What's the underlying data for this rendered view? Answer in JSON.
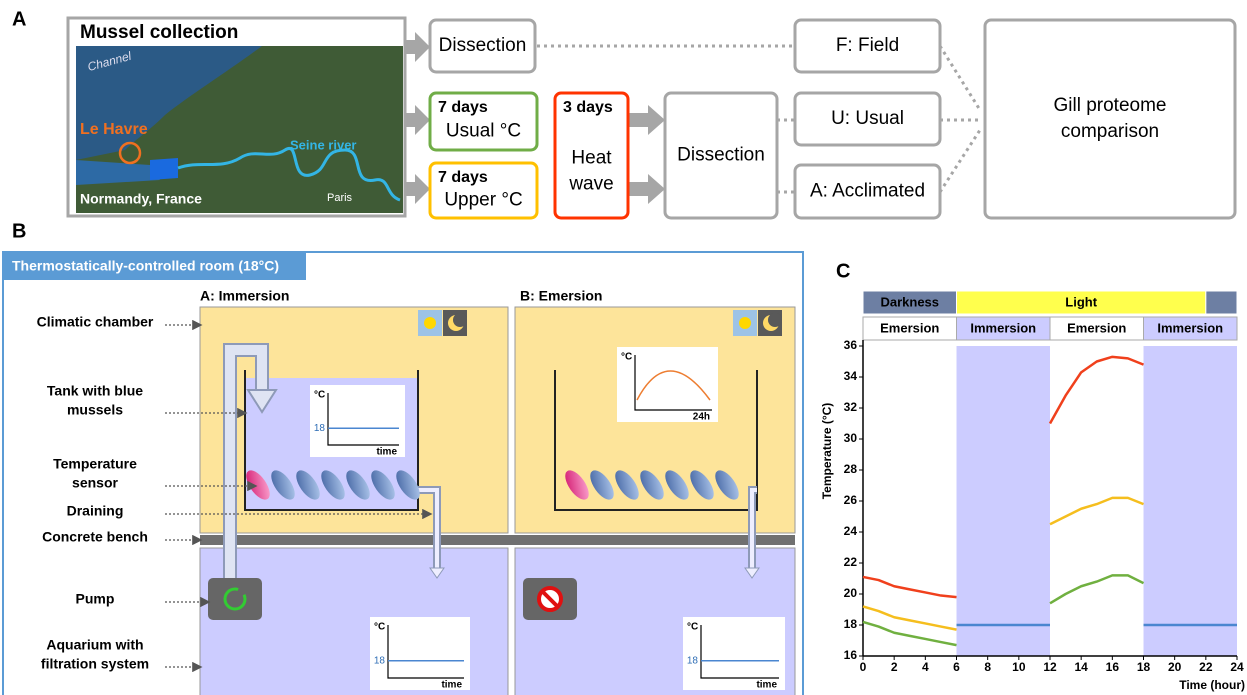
{
  "panel_a": {
    "label": "A",
    "map": {
      "title": "Mussel collection",
      "channel": "Channel",
      "site": "Le Havre",
      "river": "Seine river",
      "region": "Normandy, France",
      "city": "Paris"
    },
    "nodes": [
      {
        "lines": [
          "Dissection"
        ]
      },
      {
        "lines": [
          "F: Field"
        ]
      },
      {
        "title": "7 days",
        "lines": [
          "Usual °C"
        ]
      },
      {
        "title": "7 days",
        "lines": [
          "Upper °C"
        ]
      },
      {
        "title": "3 days",
        "lines": [
          "Heat",
          "wave"
        ]
      },
      {
        "lines": [
          "Dissection"
        ]
      },
      {
        "lines": [
          "U: Usual"
        ]
      },
      {
        "lines": [
          "A: Acclimated"
        ]
      },
      {
        "lines": [
          "Gill proteome",
          "comparison"
        ]
      }
    ]
  },
  "panel_b": {
    "label": "B",
    "room": "Thermostatically-controlled room (18°C)",
    "conditions": [
      "A: Immersion",
      "B: Emersion"
    ],
    "parts": [
      [
        "Climatic chamber"
      ],
      [
        "Tank with blue",
        "mussels"
      ],
      [
        "Temperature",
        "sensor"
      ],
      [
        "Draining"
      ],
      [
        "Concrete bench"
      ],
      [
        "Pump"
      ],
      [
        "Aquarium with",
        "filtration system"
      ]
    ],
    "mini_chart": {
      "unit": "°C",
      "level": 18,
      "x_label": "time",
      "x_label_day": "24h"
    }
  },
  "chart_data": {
    "type": "line",
    "label": "C",
    "ylabel": "Temperature (°C)",
    "xlabel": "Time (hour)",
    "x": [
      0,
      1,
      2,
      3,
      4,
      5,
      6,
      7,
      8,
      9,
      10,
      11,
      12,
      13,
      14,
      15,
      16,
      17,
      18,
      19,
      20,
      21,
      22,
      23,
      24
    ],
    "xlim": [
      0,
      24
    ],
    "xticks": [
      0,
      2,
      4,
      6,
      8,
      10,
      12,
      14,
      16,
      18,
      20,
      22,
      24
    ],
    "ylim": [
      16,
      36
    ],
    "yticks": [
      16,
      18,
      20,
      22,
      24,
      26,
      28,
      30,
      32,
      34,
      36
    ],
    "light_bands": [
      {
        "label": "Darkness",
        "from": 0,
        "to": 6,
        "color": "#6d7fa3"
      },
      {
        "label": "Light",
        "from": 6,
        "to": 22,
        "color": "#ffff4d"
      },
      {
        "label": null,
        "from": 22,
        "to": 24,
        "color": "#6d7fa3"
      }
    ],
    "tide_bands": [
      {
        "label": "Emersion",
        "from": 0,
        "to": 6,
        "color": "#ffffff"
      },
      {
        "label": "Immersion",
        "from": 6,
        "to": 12,
        "color": "#ccccff"
      },
      {
        "label": "Emersion",
        "from": 12,
        "to": 18,
        "color": "#ffffff"
      },
      {
        "label": "Immersion",
        "from": 18,
        "to": 24,
        "color": "#ccccff"
      }
    ],
    "series": [
      {
        "color": "#f0401c",
        "values": [
          21.1,
          20.9,
          20.5,
          20.3,
          20.1,
          19.9,
          19.8,
          null,
          null,
          null,
          null,
          null,
          31,
          32.8,
          34.3,
          35,
          35.3,
          35.2,
          34.8,
          null,
          null,
          null,
          null,
          null,
          null
        ]
      },
      {
        "color": "#f5be1e",
        "values": [
          19.2,
          18.9,
          18.5,
          18.3,
          18.1,
          17.9,
          17.7,
          null,
          null,
          null,
          null,
          null,
          24.5,
          25,
          25.5,
          25.8,
          26.2,
          26.2,
          25.8,
          null,
          null,
          null,
          null,
          null,
          null
        ]
      },
      {
        "color": "#70b040",
        "values": [
          18.2,
          17.9,
          17.5,
          17.3,
          17.1,
          16.9,
          16.7,
          null,
          null,
          null,
          null,
          null,
          19.4,
          20,
          20.5,
          20.8,
          21.2,
          21.2,
          20.7,
          null,
          null,
          null,
          null,
          null,
          null
        ]
      },
      {
        "color": "#4a86d0",
        "values": [
          null,
          null,
          null,
          null,
          null,
          null,
          18,
          18,
          18,
          18,
          18,
          18,
          18,
          null,
          null,
          null,
          null,
          null,
          18,
          18,
          18,
          18,
          18,
          18,
          18
        ]
      }
    ]
  }
}
